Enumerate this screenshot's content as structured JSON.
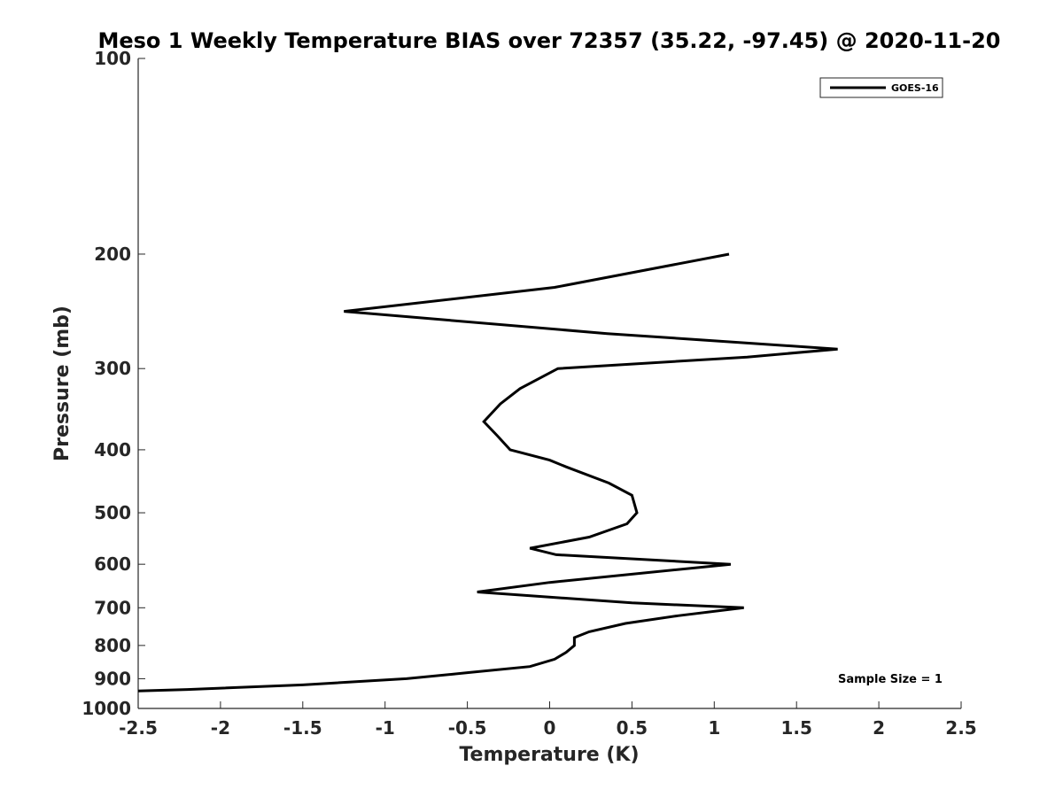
{
  "chart_data": {
    "type": "line",
    "title": "Meso 1 Weekly Temperature BIAS over 72357 (35.22, -97.45) @ 2020-11-20",
    "xlabel": "Temperature (K)",
    "ylabel": "Pressure (mb)",
    "xlim": [
      -2.5,
      2.5
    ],
    "ylim": [
      100,
      1000
    ],
    "y_scale": "log",
    "y_reversed": true,
    "x_ticks": [
      -2.5,
      -2,
      -1.5,
      -1,
      -0.5,
      0,
      0.5,
      1,
      1.5,
      2,
      2.5
    ],
    "x_tick_labels": [
      "-2.5",
      "-2",
      "-1.5",
      "-1",
      "-0.5",
      "0",
      "0.5",
      "1",
      "1.5",
      "2",
      "2.5"
    ],
    "y_ticks": [
      100,
      200,
      300,
      400,
      500,
      600,
      700,
      800,
      900,
      1000
    ],
    "y_tick_labels": [
      "100",
      "200",
      "300",
      "400",
      "500",
      "600",
      "700",
      "800",
      "900",
      "1000"
    ],
    "grid": false,
    "legend_position": "top-right",
    "annotation": "Sample Size = 1",
    "series": [
      {
        "name": "GOES-16",
        "color": "#000000",
        "points": [
          {
            "x": 1.09,
            "p": 200
          },
          {
            "x": 0.03,
            "p": 225
          },
          {
            "x": -1.25,
            "p": 245
          },
          {
            "x": 0.35,
            "p": 265
          },
          {
            "x": 1.75,
            "p": 280
          },
          {
            "x": 1.2,
            "p": 288
          },
          {
            "x": 0.05,
            "p": 300
          },
          {
            "x": -0.18,
            "p": 322
          },
          {
            "x": -0.3,
            "p": 340
          },
          {
            "x": -0.4,
            "p": 362
          },
          {
            "x": -0.32,
            "p": 380
          },
          {
            "x": -0.24,
            "p": 400
          },
          {
            "x": 0.0,
            "p": 415
          },
          {
            "x": 0.1,
            "p": 425
          },
          {
            "x": 0.36,
            "p": 450
          },
          {
            "x": 0.5,
            "p": 470
          },
          {
            "x": 0.53,
            "p": 500
          },
          {
            "x": 0.47,
            "p": 520
          },
          {
            "x": 0.24,
            "p": 545
          },
          {
            "x": -0.12,
            "p": 567
          },
          {
            "x": 0.04,
            "p": 580
          },
          {
            "x": 1.1,
            "p": 600
          },
          {
            "x": 0.0,
            "p": 640
          },
          {
            "x": -0.44,
            "p": 662
          },
          {
            "x": 0.5,
            "p": 688
          },
          {
            "x": 1.18,
            "p": 700
          },
          {
            "x": 0.78,
            "p": 720
          },
          {
            "x": 0.46,
            "p": 740
          },
          {
            "x": 0.24,
            "p": 762
          },
          {
            "x": 0.15,
            "p": 778
          },
          {
            "x": 0.15,
            "p": 800
          },
          {
            "x": 0.1,
            "p": 820
          },
          {
            "x": 0.03,
            "p": 840
          },
          {
            "x": -0.12,
            "p": 862
          },
          {
            "x": -0.48,
            "p": 880
          },
          {
            "x": -0.87,
            "p": 900
          },
          {
            "x": -1.5,
            "p": 920
          },
          {
            "x": -2.2,
            "p": 935
          },
          {
            "x": -2.5,
            "p": 940
          }
        ]
      }
    ]
  }
}
